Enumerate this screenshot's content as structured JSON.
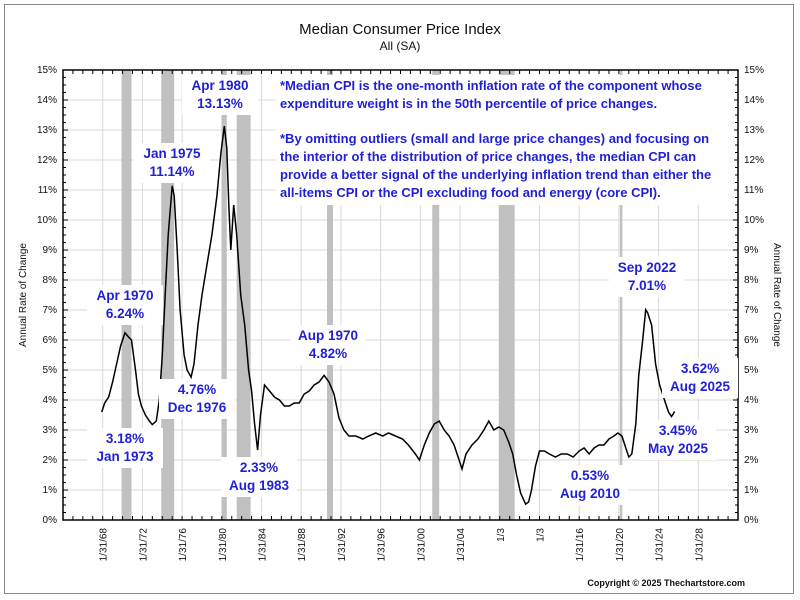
{
  "chart_data": {
    "type": "line",
    "title": "Median Consumer Price Index",
    "subtitle": "All (SA)",
    "ylabel": "Annual Rate of Change",
    "ylabel_right": "Annual Rate of Change",
    "xlim": [
      1964,
      2032
    ],
    "ylim": [
      0,
      15
    ],
    "yticks": [
      "0%",
      "1%",
      "2%",
      "3%",
      "4%",
      "5%",
      "6%",
      "7%",
      "8%",
      "9%",
      "10%",
      "11%",
      "12%",
      "13%",
      "14%",
      "15%"
    ],
    "xticks": [
      {
        "year": 1968,
        "label": "1/31/68"
      },
      {
        "year": 1972,
        "label": "1/31/72"
      },
      {
        "year": 1976,
        "label": "1/31/76"
      },
      {
        "year": 1980,
        "label": "1/31/80"
      },
      {
        "year": 1984,
        "label": "1/31/84"
      },
      {
        "year": 1988,
        "label": "1/31/88"
      },
      {
        "year": 1992,
        "label": "1/31/92"
      },
      {
        "year": 1996,
        "label": "1/31/96"
      },
      {
        "year": 2000,
        "label": "1/31/00"
      },
      {
        "year": 2004,
        "label": "1/31/04"
      },
      {
        "year": 2008,
        "label": "1/3"
      },
      {
        "year": 2012,
        "label": "1/3"
      },
      {
        "year": 2016,
        "label": "1/31/16"
      },
      {
        "year": 2020,
        "label": "1/31/20"
      },
      {
        "year": 2024,
        "label": "1/31/24"
      },
      {
        "year": 2028,
        "label": "1/31/28"
      }
    ],
    "grid": true,
    "recessions": [
      [
        1969.9,
        1970.9
      ],
      [
        1973.9,
        1975.2
      ],
      [
        1980.0,
        1980.5
      ],
      [
        1981.5,
        1982.9
      ],
      [
        1990.6,
        1991.2
      ],
      [
        2001.2,
        2001.9
      ],
      [
        2007.9,
        2009.5
      ],
      [
        2020.1,
        2020.35
      ]
    ],
    "series": [
      {
        "color": "#000000",
        "points": [
          [
            1967.9,
            3.6
          ],
          [
            1968.2,
            3.9
          ],
          [
            1968.6,
            4.1
          ],
          [
            1969.0,
            4.6
          ],
          [
            1969.4,
            5.2
          ],
          [
            1969.8,
            5.8
          ],
          [
            1970.25,
            6.24
          ],
          [
            1970.6,
            6.1
          ],
          [
            1970.9,
            6.0
          ],
          [
            1971.3,
            5.0
          ],
          [
            1971.6,
            4.2
          ],
          [
            1971.9,
            3.8
          ],
          [
            1972.3,
            3.5
          ],
          [
            1972.7,
            3.3
          ],
          [
            1973.0,
            3.18
          ],
          [
            1973.4,
            3.3
          ],
          [
            1973.7,
            4.0
          ],
          [
            1974.0,
            5.5
          ],
          [
            1974.3,
            7.5
          ],
          [
            1974.6,
            9.5
          ],
          [
            1975.0,
            11.14
          ],
          [
            1975.2,
            10.8
          ],
          [
            1975.5,
            9.0
          ],
          [
            1975.8,
            7.0
          ],
          [
            1976.2,
            5.5
          ],
          [
            1976.5,
            5.0
          ],
          [
            1976.9,
            4.76
          ],
          [
            1977.2,
            5.2
          ],
          [
            1977.6,
            6.5
          ],
          [
            1978.0,
            7.5
          ],
          [
            1978.5,
            8.5
          ],
          [
            1979.0,
            9.5
          ],
          [
            1979.5,
            10.8
          ],
          [
            1979.9,
            12.2
          ],
          [
            1980.25,
            13.13
          ],
          [
            1980.5,
            12.4
          ],
          [
            1980.7,
            10.5
          ],
          [
            1980.9,
            9.0
          ],
          [
            1981.2,
            10.5
          ],
          [
            1981.5,
            9.5
          ],
          [
            1981.9,
            7.5
          ],
          [
            1982.3,
            6.5
          ],
          [
            1982.7,
            5.0
          ],
          [
            1983.0,
            4.3
          ],
          [
            1983.3,
            3.2
          ],
          [
            1983.6,
            2.33
          ],
          [
            1983.9,
            3.5
          ],
          [
            1984.3,
            4.5
          ],
          [
            1984.8,
            4.3
          ],
          [
            1985.3,
            4.1
          ],
          [
            1985.8,
            4.0
          ],
          [
            1986.3,
            3.8
          ],
          [
            1986.8,
            3.8
          ],
          [
            1987.3,
            3.9
          ],
          [
            1987.8,
            3.9
          ],
          [
            1988.3,
            4.2
          ],
          [
            1988.8,
            4.3
          ],
          [
            1989.3,
            4.5
          ],
          [
            1989.8,
            4.6
          ],
          [
            1990.3,
            4.82
          ],
          [
            1990.8,
            4.6
          ],
          [
            1991.3,
            4.2
          ],
          [
            1991.8,
            3.4
          ],
          [
            1992.3,
            3.0
          ],
          [
            1992.8,
            2.8
          ],
          [
            1993.5,
            2.8
          ],
          [
            1994.2,
            2.7
          ],
          [
            1994.8,
            2.8
          ],
          [
            1995.5,
            2.9
          ],
          [
            1996.2,
            2.8
          ],
          [
            1996.8,
            2.9
          ],
          [
            1997.5,
            2.8
          ],
          [
            1998.2,
            2.7
          ],
          [
            1998.8,
            2.5
          ],
          [
            1999.5,
            2.2
          ],
          [
            1999.9,
            2.0
          ],
          [
            2000.4,
            2.5
          ],
          [
            2000.9,
            2.9
          ],
          [
            2001.4,
            3.2
          ],
          [
            2001.9,
            3.3
          ],
          [
            2002.4,
            3.0
          ],
          [
            2002.9,
            2.8
          ],
          [
            2003.4,
            2.5
          ],
          [
            2003.9,
            2.0
          ],
          [
            2004.2,
            1.7
          ],
          [
            2004.6,
            2.2
          ],
          [
            2005.2,
            2.5
          ],
          [
            2005.8,
            2.7
          ],
          [
            2006.4,
            3.0
          ],
          [
            2006.9,
            3.3
          ],
          [
            2007.4,
            3.0
          ],
          [
            2007.9,
            3.1
          ],
          [
            2008.4,
            3.0
          ],
          [
            2008.9,
            2.6
          ],
          [
            2009.3,
            2.2
          ],
          [
            2009.7,
            1.5
          ],
          [
            2010.1,
            0.9
          ],
          [
            2010.6,
            0.53
          ],
          [
            2010.9,
            0.6
          ],
          [
            2011.2,
            1.0
          ],
          [
            2011.6,
            1.8
          ],
          [
            2012.0,
            2.3
          ],
          [
            2012.5,
            2.3
          ],
          [
            2013.0,
            2.2
          ],
          [
            2013.6,
            2.1
          ],
          [
            2014.2,
            2.2
          ],
          [
            2014.8,
            2.2
          ],
          [
            2015.4,
            2.1
          ],
          [
            2016.0,
            2.3
          ],
          [
            2016.5,
            2.4
          ],
          [
            2017.0,
            2.2
          ],
          [
            2017.5,
            2.4
          ],
          [
            2018.0,
            2.5
          ],
          [
            2018.5,
            2.5
          ],
          [
            2019.0,
            2.7
          ],
          [
            2019.5,
            2.8
          ],
          [
            2019.9,
            2.9
          ],
          [
            2020.3,
            2.8
          ],
          [
            2020.7,
            2.4
          ],
          [
            2021.0,
            2.1
          ],
          [
            2021.3,
            2.2
          ],
          [
            2021.7,
            3.2
          ],
          [
            2022.0,
            4.8
          ],
          [
            2022.4,
            6.0
          ],
          [
            2022.7,
            7.01
          ],
          [
            2022.9,
            6.9
          ],
          [
            2023.3,
            6.5
          ],
          [
            2023.7,
            5.2
          ],
          [
            2024.1,
            4.5
          ],
          [
            2024.6,
            4.0
          ],
          [
            2025.0,
            3.6
          ],
          [
            2025.3,
            3.45
          ],
          [
            2025.5,
            3.55
          ],
          [
            2025.6,
            3.62
          ]
        ]
      }
    ],
    "annotations": [
      {
        "lines": [
          "Apr 1970",
          "6.24%"
        ]
      },
      {
        "lines": [
          "3.18%",
          "Jan 1973"
        ]
      },
      {
        "lines": [
          "Jan 1975",
          "11.14%"
        ]
      },
      {
        "lines": [
          "Apr 1980",
          "13.13%"
        ]
      },
      {
        "lines": [
          "4.76%",
          "Dec 1976"
        ]
      },
      {
        "lines": [
          "2.33%",
          "Aug 1983"
        ]
      },
      {
        "lines": [
          "Aup 1970",
          "4.82%"
        ]
      },
      {
        "lines": [
          "0.53%",
          "Aug 2010"
        ]
      },
      {
        "lines": [
          "Sep 2022",
          "7.01%"
        ]
      },
      {
        "lines": [
          "3.62%",
          "Aug 2025"
        ]
      },
      {
        "lines": [
          "3.45%",
          "May 2025"
        ]
      }
    ],
    "notes": [
      "*Median CPI is the one-month inflation rate of the component whose",
      "expenditure weight is in the 50th percentile of price changes.",
      "*By omitting outliers (small and large price changes) and focusing on",
      "the interior of the distribution of price changes, the median CPI can",
      "provide a better signal of the underlying inflation trend than either the",
      "all-items CPI or the CPI excluding food and energy (core CPI)."
    ],
    "copyright": "Copyright © 2025 Thechartstore.com",
    "colors": {
      "annotation": "#1f1fd6",
      "recession": "#c0c0c0",
      "grid": "#d8d8d8",
      "line": "#000000"
    }
  }
}
